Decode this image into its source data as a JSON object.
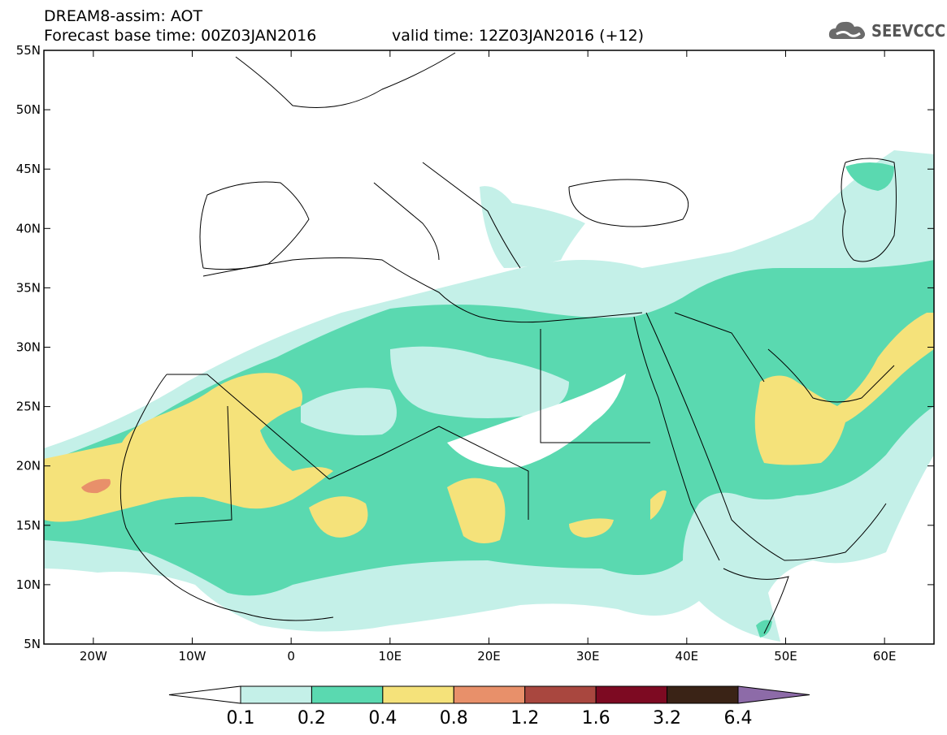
{
  "header": {
    "line1": "DREAM8-assim: AOT",
    "line2": "Forecast base time: 00Z03JAN2016",
    "line3": "valid time: 12Z03JAN2016 (+12)",
    "logo_text": "SEEVCCC"
  },
  "map": {
    "lon_range": [
      -25,
      65
    ],
    "lat_range": [
      5,
      55
    ],
    "x_ticks": [
      "20W",
      "10W",
      "0",
      "10E",
      "20E",
      "30E",
      "40E",
      "50E",
      "60E"
    ],
    "y_ticks": [
      "55N",
      "50N",
      "45N",
      "40N",
      "35N",
      "30N",
      "25N",
      "20N",
      "15N",
      "10N",
      "5N"
    ],
    "variable": "AOT"
  },
  "colorbar": {
    "labels": [
      "0.1",
      "0.2",
      "0.4",
      "0.8",
      "1.2",
      "1.6",
      "3.2",
      "6.4"
    ],
    "colors": [
      "#ffffff",
      "#c4f0e8",
      "#5ad9b0",
      "#f5e27a",
      "#e8906a",
      "#a9473f",
      "#7d0a22",
      "#3a2316",
      "#8d6ba8"
    ]
  }
}
